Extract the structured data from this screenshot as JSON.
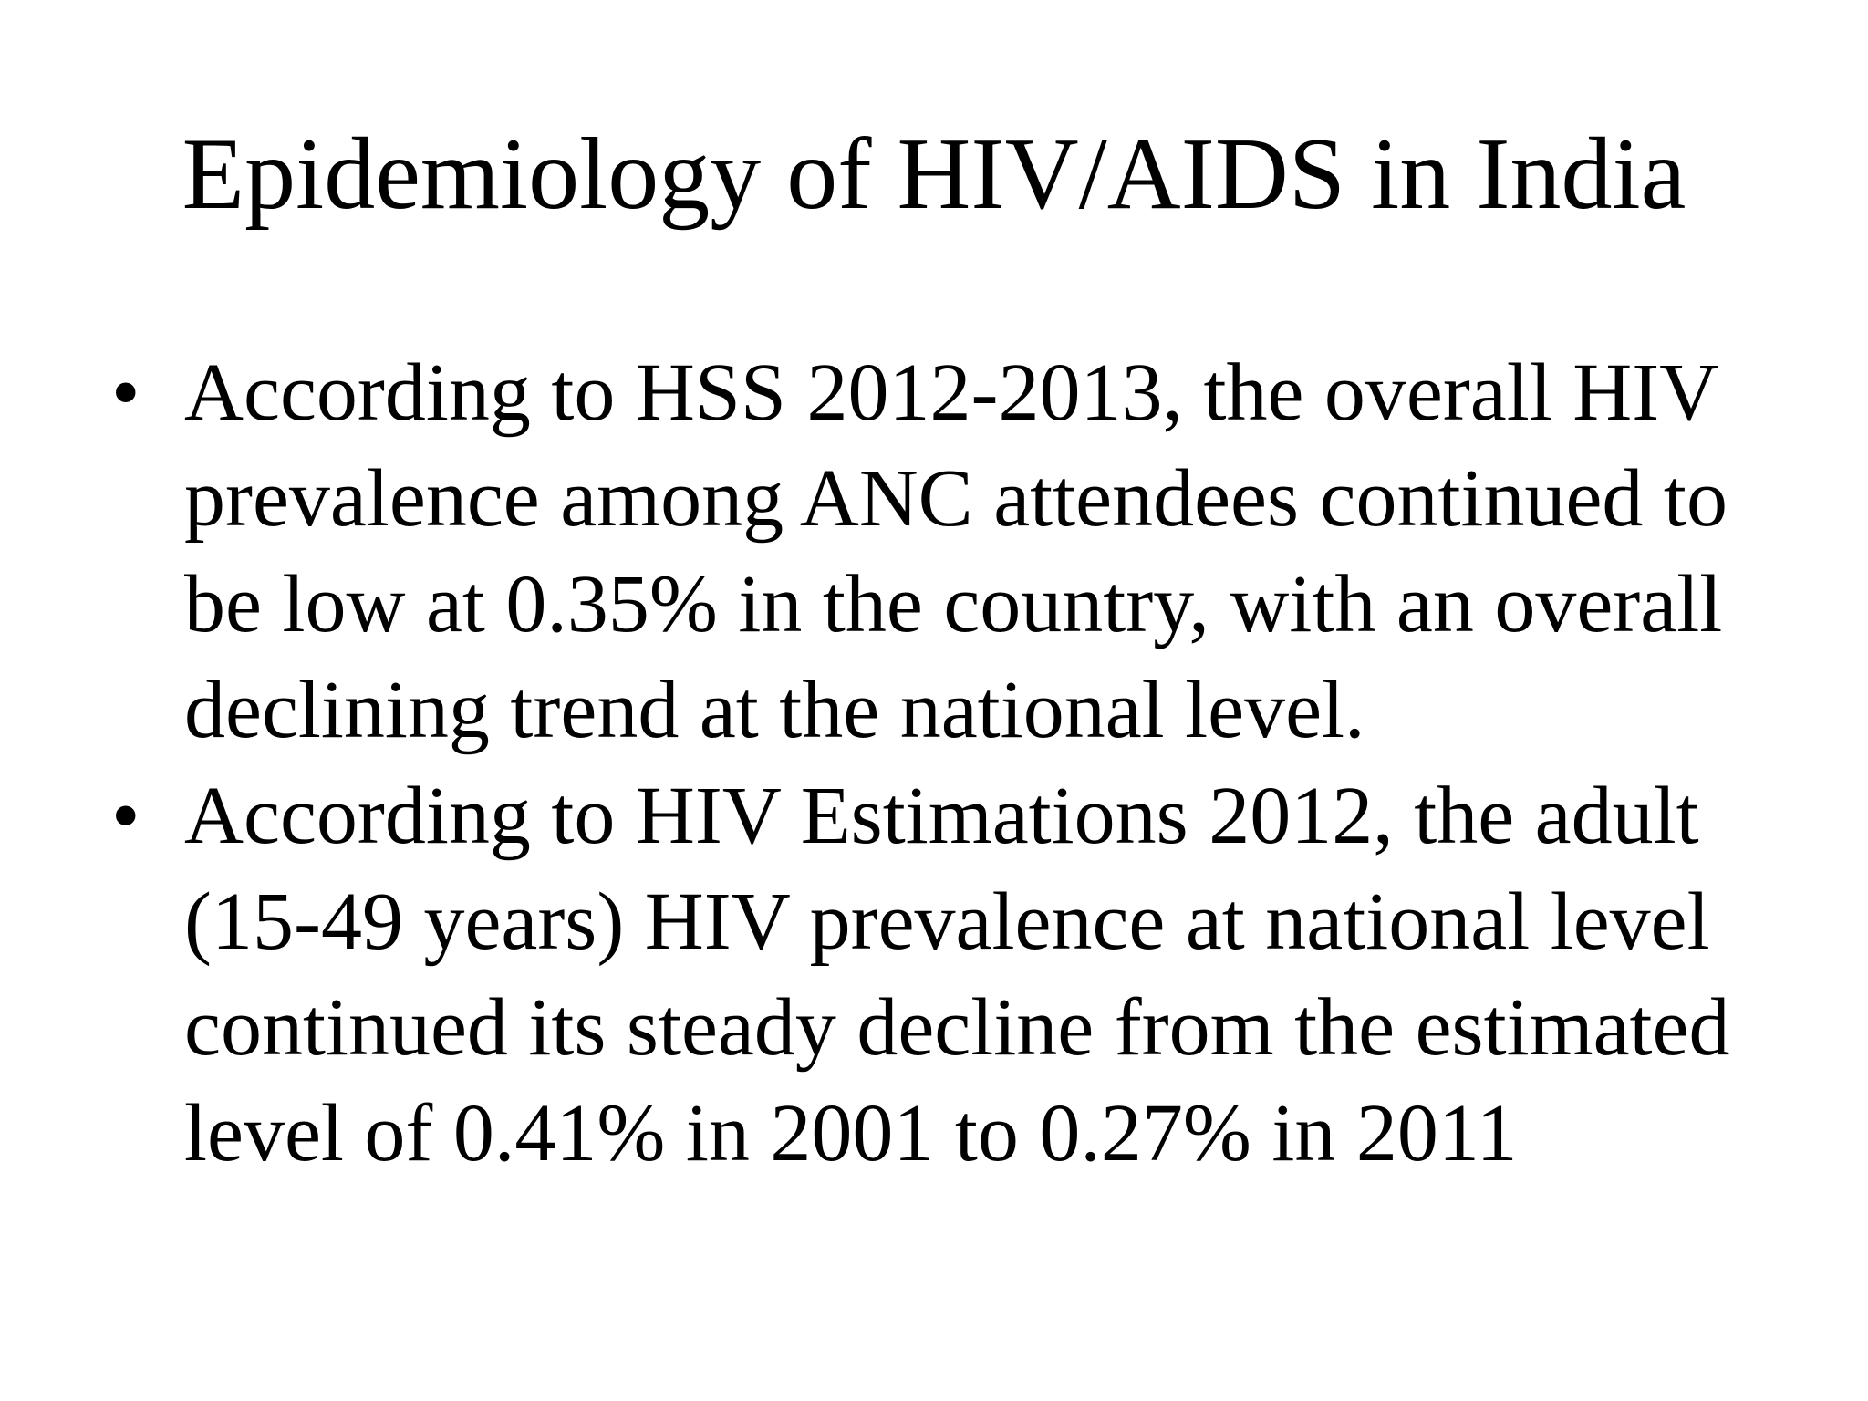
{
  "slide": {
    "title": "Epidemiology of HIV/AIDS in India",
    "bullet_marker": "•",
    "bullets": [
      {
        "text": "According to HSS 2012-2013, the overall HIV prevalence among ANC attendees continued to be low at 0.35% in the country, with an overall declining trend at the national level."
      },
      {
        "text": "According to HIV Estimations 2012, the adult (15-49 years) HIV prevalence at national level continued its steady decline from the estimated level of 0.41% in 2001 to 0.27% in 2011"
      }
    ]
  }
}
